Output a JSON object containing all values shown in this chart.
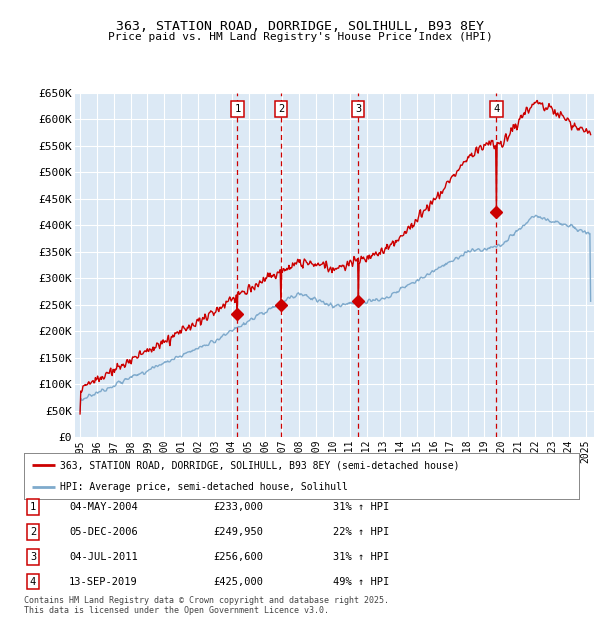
{
  "title": "363, STATION ROAD, DORRIDGE, SOLIHULL, B93 8EY",
  "subtitle": "Price paid vs. HM Land Registry's House Price Index (HPI)",
  "ylabel_ticks": [
    "£0",
    "£50K",
    "£100K",
    "£150K",
    "£200K",
    "£250K",
    "£300K",
    "£350K",
    "£400K",
    "£450K",
    "£500K",
    "£550K",
    "£600K",
    "£650K"
  ],
  "ylim": [
    0,
    650000
  ],
  "ytick_vals": [
    0,
    50000,
    100000,
    150000,
    200000,
    250000,
    300000,
    350000,
    400000,
    450000,
    500000,
    550000,
    600000,
    650000
  ],
  "xlim_start": 1994.7,
  "xlim_end": 2025.5,
  "bg_color": "#dce9f5",
  "red_color": "#cc0000",
  "blue_color": "#7faacc",
  "sale_markers": [
    {
      "num": 1,
      "year": 2004.34,
      "price": 233000,
      "label": "04-MAY-2004",
      "amount": "£233,000",
      "pct": "31% ↑ HPI"
    },
    {
      "num": 2,
      "year": 2006.92,
      "price": 249950,
      "label": "05-DEC-2006",
      "amount": "£249,950",
      "pct": "22% ↑ HPI"
    },
    {
      "num": 3,
      "year": 2011.5,
      "price": 256600,
      "label": "04-JUL-2011",
      "amount": "£256,600",
      "pct": "31% ↑ HPI"
    },
    {
      "num": 4,
      "year": 2019.7,
      "price": 425000,
      "label": "13-SEP-2019",
      "amount": "£425,000",
      "pct": "49% ↑ HPI"
    }
  ],
  "legend_line1": "363, STATION ROAD, DORRIDGE, SOLIHULL, B93 8EY (semi-detached house)",
  "legend_line2": "HPI: Average price, semi-detached house, Solihull",
  "footer": "Contains HM Land Registry data © Crown copyright and database right 2025.\nThis data is licensed under the Open Government Licence v3.0.",
  "xtick_years": [
    1995,
    1996,
    1997,
    1998,
    1999,
    2000,
    2001,
    2002,
    2003,
    2004,
    2005,
    2006,
    2007,
    2008,
    2009,
    2010,
    2011,
    2012,
    2013,
    2014,
    2015,
    2016,
    2017,
    2018,
    2019,
    2020,
    2021,
    2022,
    2023,
    2024,
    2025
  ]
}
